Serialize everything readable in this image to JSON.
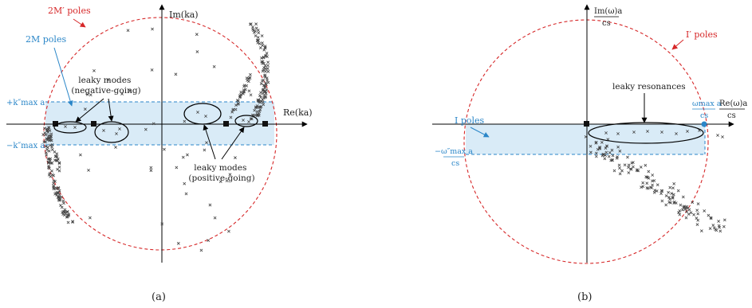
{
  "panel_a": {
    "caption": "(a)",
    "im_axis_label": "Im(ka)",
    "re_axis_label": "Re(ka)",
    "red_poles_label": "2M′ poles",
    "blue_poles_label": "2M poles",
    "band_top_label": "+k″max a",
    "band_bottom_label": "−k″max a",
    "leaky_neg_line1": "leaky modes",
    "leaky_neg_line2": "(negative-going)",
    "leaky_pos_line1": "leaky modes",
    "leaky_pos_line2": "(positive-going)"
  },
  "panel_b": {
    "caption": "(b)",
    "im_axis_label_top": "Im(ω)a",
    "im_axis_label_bottom": "cs",
    "re_axis_label_top": "Re(ω)a",
    "re_axis_label_bottom": "cs",
    "red_poles_label": "I′ poles",
    "blue_poles_label": "I poles",
    "band_right_top": "ωmax a",
    "band_right_bottom": "cs",
    "band_left_top": "−ω″max a",
    "band_left_bottom": "cs",
    "leaky_label": "leaky resonances"
  },
  "colors": {
    "circle": "#d62728",
    "band_fill": "#d9ebf7",
    "band_stroke": "#2a86c8",
    "axis": "#000000",
    "pole_marker": "#111111"
  }
}
